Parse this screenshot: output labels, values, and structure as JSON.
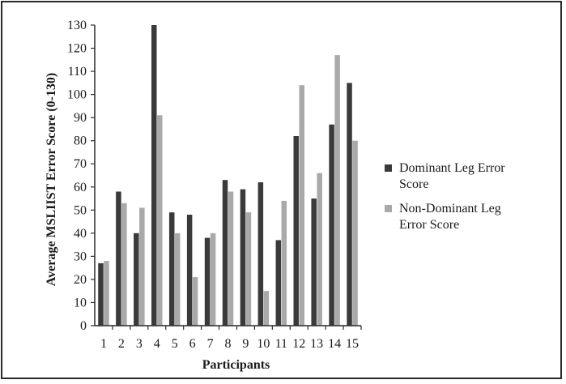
{
  "chart_data": {
    "type": "bar",
    "xlabel": "Participants",
    "ylabel": "Average MSLIIST Error Score (0-130)",
    "ylim": [
      0,
      130
    ],
    "yticks": [
      0,
      10,
      20,
      30,
      40,
      50,
      60,
      70,
      80,
      90,
      100,
      110,
      120,
      130
    ],
    "categories": [
      "1",
      "2",
      "3",
      "4",
      "5",
      "6",
      "7",
      "8",
      "9",
      "10",
      "11",
      "12",
      "13",
      "14",
      "15"
    ],
    "series": [
      {
        "name": "Dominant Leg Error Score",
        "color": "#3a3a3a",
        "values": [
          27,
          58,
          40,
          130,
          49,
          48,
          38,
          63,
          59,
          62,
          37,
          82,
          55,
          87,
          105
        ]
      },
      {
        "name": "Non-Dominant Leg Error Score",
        "color": "#a9a9a9",
        "values": [
          28,
          53,
          51,
          91,
          40,
          21,
          40,
          58,
          49,
          15,
          54,
          104,
          66,
          117,
          80
        ]
      }
    ],
    "legend": {
      "position": "right",
      "entries": [
        {
          "lines": [
            "Dominant Leg Error",
            "Score"
          ],
          "color": "#3a3a3a"
        },
        {
          "lines": [
            "Non-Dominant Leg",
            "Error Score"
          ],
          "color": "#a9a9a9"
        }
      ]
    },
    "grid": false
  }
}
